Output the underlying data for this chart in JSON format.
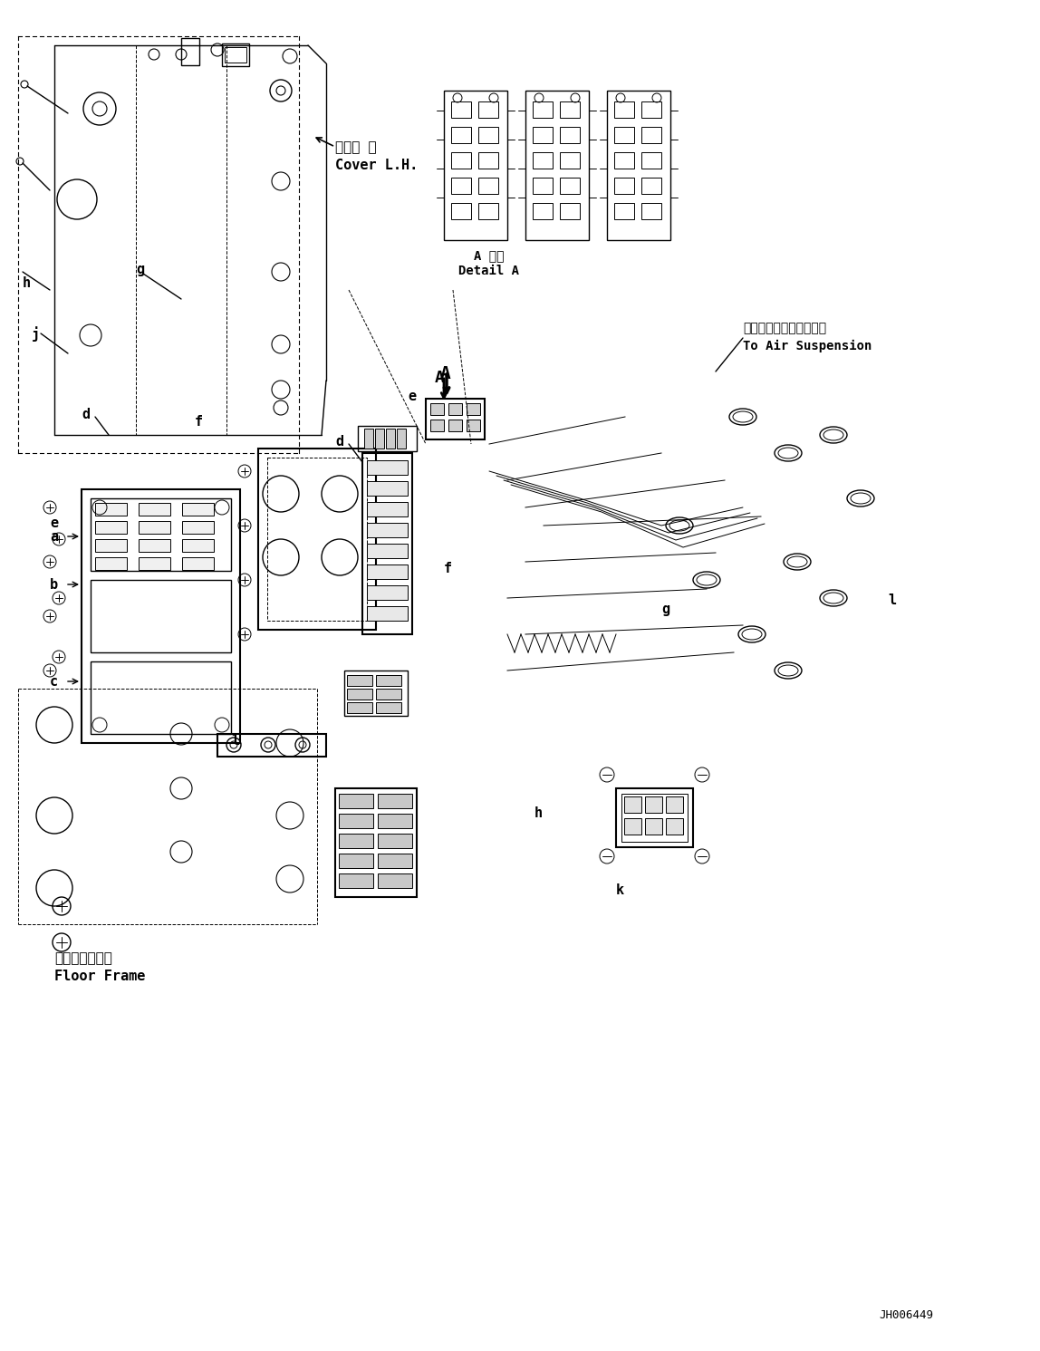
{
  "bg_color": "#ffffff",
  "line_color": "#000000",
  "title_code": "JH006449",
  "labels": {
    "cover_jp": "カバー 左",
    "cover_en": "Cover L.H.",
    "detail_jp": "A 詳細",
    "detail_en": "Detail A",
    "air_jp": "エアーサスペンションへ",
    "air_en": "To Air Suspension",
    "floor_jp": "フロアフレーム",
    "floor_en": "Floor Frame"
  },
  "part_labels": [
    "a",
    "b",
    "c",
    "d",
    "e",
    "f",
    "g",
    "h",
    "j",
    "k",
    "l",
    "A"
  ],
  "figsize": [
    11.48,
    14.91
  ],
  "dpi": 100
}
